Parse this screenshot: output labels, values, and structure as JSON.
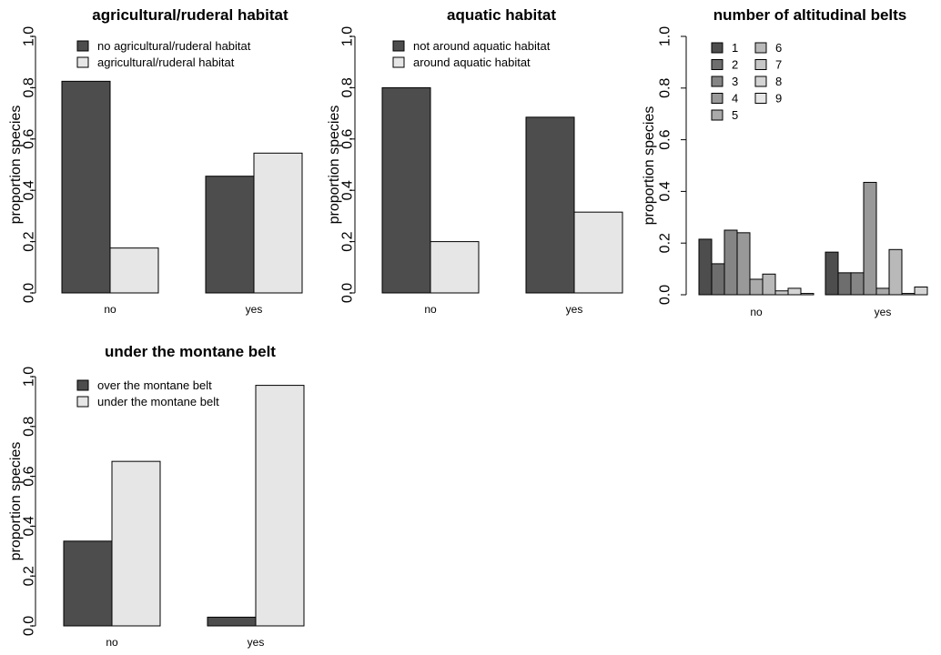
{
  "chart_data": [
    {
      "type": "bar",
      "title": "agricultural/ruderal habitat",
      "ylabel": "proportion species",
      "xlabel": "",
      "ylim": [
        0,
        1
      ],
      "yticks": [
        "0.0",
        "0.2",
        "0.4",
        "0.6",
        "0.8",
        "1.0"
      ],
      "categories": [
        "no",
        "yes"
      ],
      "legend_position": "top-left",
      "series": [
        {
          "name": "no agricultural/ruderal habitat",
          "color": "#4d4d4d",
          "values": [
            0.825,
            0.455
          ]
        },
        {
          "name": "agricultural/ruderal habitat",
          "color": "#e6e6e6",
          "values": [
            0.175,
            0.545
          ]
        }
      ]
    },
    {
      "type": "bar",
      "title": "aquatic habitat",
      "ylabel": "proportion species",
      "xlabel": "",
      "ylim": [
        0,
        1
      ],
      "yticks": [
        "0.0",
        "0.2",
        "0.4",
        "0.6",
        "0.8",
        "1.0"
      ],
      "categories": [
        "no",
        "yes"
      ],
      "legend_position": "top-left",
      "series": [
        {
          "name": "not around aquatic habitat",
          "color": "#4d4d4d",
          "values": [
            0.8,
            0.685
          ]
        },
        {
          "name": "around aquatic habitat",
          "color": "#e6e6e6",
          "values": [
            0.2,
            0.315
          ]
        }
      ]
    },
    {
      "type": "bar",
      "title": "number of altitudinal belts",
      "ylabel": "proportion species",
      "xlabel": "",
      "ylim": [
        0,
        1
      ],
      "yticks": [
        "0.0",
        "0.2",
        "0.4",
        "0.6",
        "0.8",
        "1.0"
      ],
      "categories": [
        "no",
        "yes"
      ],
      "legend_position": "top-left",
      "legend_columns": 2,
      "series": [
        {
          "name": "1",
          "color": "#4d4d4d",
          "values": [
            0.215,
            0.165
          ]
        },
        {
          "name": "2",
          "color": "#6e6e6e",
          "values": [
            0.12,
            0.085
          ]
        },
        {
          "name": "3",
          "color": "#858585",
          "values": [
            0.25,
            0.085
          ]
        },
        {
          "name": "4",
          "color": "#999999",
          "values": [
            0.24,
            0.435
          ]
        },
        {
          "name": "5",
          "color": "#aaaaaa",
          "values": [
            0.06,
            0.025
          ]
        },
        {
          "name": "6",
          "color": "#b9b9b9",
          "values": [
            0.08,
            0.175
          ]
        },
        {
          "name": "7",
          "color": "#c7c7c7",
          "values": [
            0.015,
            0.005
          ]
        },
        {
          "name": "8",
          "color": "#d4d4d4",
          "values": [
            0.025,
            0.03
          ]
        },
        {
          "name": "9",
          "color": "#e6e6e6",
          "values": [
            0.005,
            0.0
          ]
        }
      ]
    },
    {
      "type": "bar",
      "title": "under the montane belt",
      "ylabel": "proportion species",
      "xlabel": "",
      "ylim": [
        0,
        1
      ],
      "yticks": [
        "0.0",
        "0.2",
        "0.4",
        "0.6",
        "0.8",
        "1.0"
      ],
      "categories": [
        "no",
        "yes"
      ],
      "legend_position": "top-left",
      "series": [
        {
          "name": "over the montane belt",
          "color": "#4d4d4d",
          "values": [
            0.34,
            0.035
          ]
        },
        {
          "name": "under the montane belt",
          "color": "#e6e6e6",
          "values": [
            0.66,
            0.965
          ]
        }
      ]
    }
  ]
}
